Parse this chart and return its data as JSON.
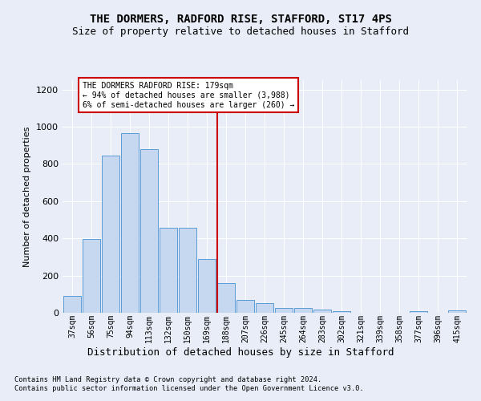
{
  "title": "THE DORMERS, RADFORD RISE, STAFFORD, ST17 4PS",
  "subtitle": "Size of property relative to detached houses in Stafford",
  "xlabel": "Distribution of detached houses by size in Stafford",
  "ylabel": "Number of detached properties",
  "categories": [
    "37sqm",
    "56sqm",
    "75sqm",
    "94sqm",
    "113sqm",
    "132sqm",
    "150sqm",
    "169sqm",
    "188sqm",
    "207sqm",
    "226sqm",
    "245sqm",
    "264sqm",
    "283sqm",
    "302sqm",
    "321sqm",
    "339sqm",
    "358sqm",
    "377sqm",
    "396sqm",
    "415sqm"
  ],
  "values": [
    90,
    395,
    845,
    965,
    880,
    458,
    458,
    290,
    160,
    68,
    50,
    28,
    28,
    18,
    10,
    0,
    0,
    0,
    10,
    0,
    15
  ],
  "bar_color": "#c5d8f0",
  "bar_edge_color": "#5b9bd5",
  "vline_color": "#cc0000",
  "vline_pos": 7.55,
  "annotation_title": "THE DORMERS RADFORD RISE: 179sqm",
  "annotation_line1": "← 94% of detached houses are smaller (3,988)",
  "annotation_line2": "6% of semi-detached houses are larger (260) →",
  "annotation_fc": "#ffffff",
  "annotation_ec": "#cc0000",
  "background_color": "#e8edf8",
  "grid_color": "#ffffff",
  "ylim": [
    0,
    1250
  ],
  "yticks": [
    0,
    200,
    400,
    600,
    800,
    1000,
    1200
  ],
  "footer_line1": "Contains HM Land Registry data © Crown copyright and database right 2024.",
  "footer_line2": "Contains public sector information licensed under the Open Government Licence v3.0."
}
